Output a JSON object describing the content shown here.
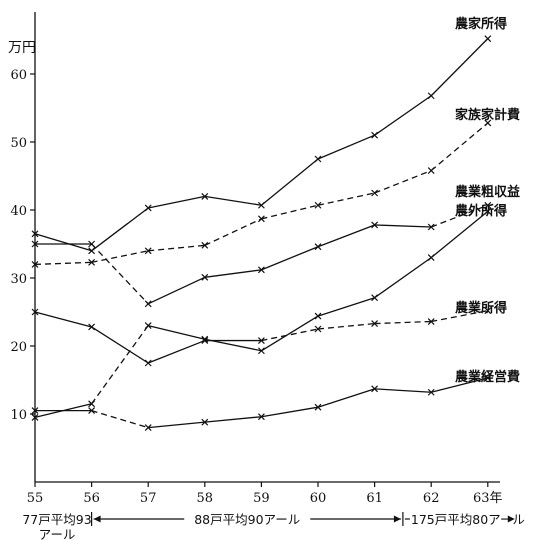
{
  "chart_data": {
    "type": "line",
    "unit": "万円",
    "x": [
      "55",
      "56",
      "57",
      "58",
      "59",
      "60",
      "61",
      "62",
      "63"
    ],
    "x_suffix": "年",
    "ylim": [
      0,
      68
    ],
    "yticks": [
      10,
      20,
      30,
      40,
      50,
      60
    ],
    "grid": false,
    "series": [
      {
        "name": "農家所得",
        "style": "solid",
        "values": [
          36.5,
          34.0,
          40.3,
          42.0,
          40.7,
          47.5,
          51.0,
          56.8,
          65.2
        ]
      },
      {
        "name": "家族家計費",
        "style": "dashed",
        "values": [
          32.0,
          32.3,
          34.0,
          34.8,
          38.7,
          40.7,
          42.5,
          45.8,
          52.8
        ]
      },
      {
        "name": "農業粗収益",
        "style": "mixed",
        "dashed_segments": [
          1,
          7
        ],
        "values": [
          35.0,
          35.0,
          26.2,
          30.1,
          31.2,
          34.6,
          37.8,
          37.5,
          40.7
        ]
      },
      {
        "name": "農外所得",
        "style": "mixed",
        "dashed_segments": [
          1
        ],
        "values": [
          9.5,
          11.5,
          23.0,
          21.0,
          19.3,
          24.4,
          27.1,
          33.0,
          39.8
        ]
      },
      {
        "name": "農業所得",
        "style": "mixed",
        "dashed_segments": [
          4,
          5,
          6,
          7
        ],
        "values": [
          25.0,
          22.8,
          17.5,
          20.8,
          20.8,
          22.5,
          23.3,
          23.6,
          25.2
        ]
      },
      {
        "name": "農業経営費",
        "style": "mixed",
        "dashed_segments": [
          1
        ],
        "values": [
          10.5,
          10.5,
          8.0,
          8.8,
          9.6,
          11.0,
          13.7,
          13.2,
          15.3
        ]
      }
    ],
    "periods": [
      {
        "label": "77戸平均93アール",
        "label_line1": "77戸平均93",
        "label_line2": "アール",
        "from": "55",
        "to": "56"
      },
      {
        "label": "88戸平均90アール",
        "from": "56",
        "to": "61.5"
      },
      {
        "label": "175戸平均80アール",
        "from": "61.5",
        "to": "63"
      }
    ]
  }
}
